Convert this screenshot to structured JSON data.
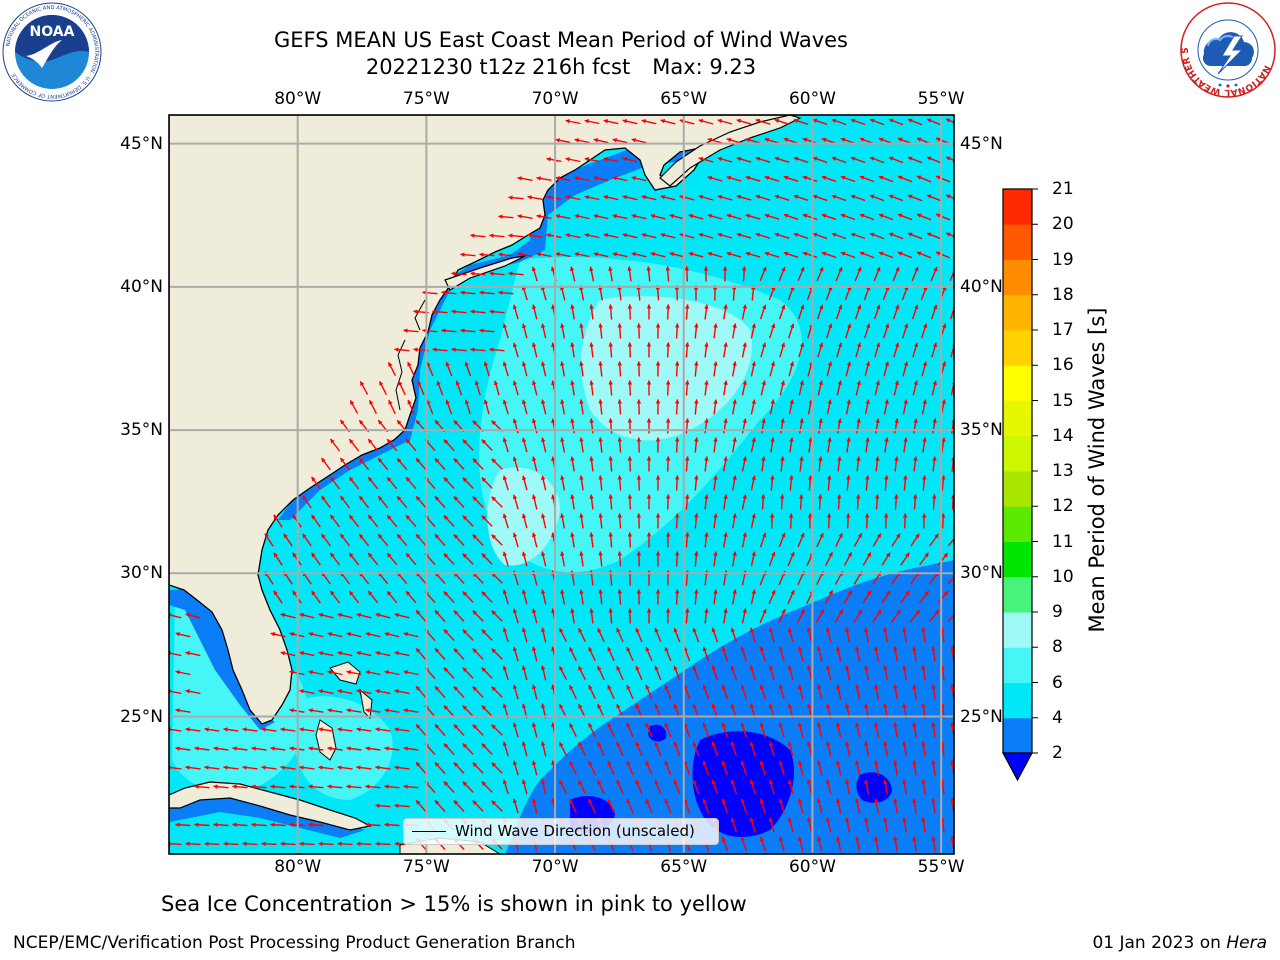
{
  "header": {
    "title_line1": "GEFS MEAN US East Coast Mean Period of Wind Waves",
    "title_run": "20221230 t12z 216h fcst",
    "title_max": "Max: 9.23"
  },
  "logos": {
    "noaa_text": "NOAA",
    "noaa_ring_text": "NATIONAL OCEANIC AND ATMOSPHERIC ADMINISTRATION · U.S. DEPARTMENT OF COMMERCE",
    "nws_ring_text": "NATIONAL WEATHER SERVICE"
  },
  "map": {
    "longitude_ticks": [
      "80°W",
      "75°W",
      "70°W",
      "65°W",
      "60°W",
      "55°W"
    ],
    "latitude_ticks": [
      "45°N",
      "40°N",
      "35°N",
      "30°N",
      "25°N"
    ],
    "longitude_values": [
      -80,
      -75,
      -70,
      -65,
      -60,
      -55
    ],
    "latitude_values": [
      45,
      40,
      35,
      30,
      25
    ],
    "lon_range": [
      -85,
      -54.5
    ],
    "lat_range": [
      20.2,
      46
    ],
    "gridlines": true,
    "land_color": "#efedd9",
    "arrow_color": "#ff0000",
    "legend_label": "Wind Wave Direction (unscaled)"
  },
  "colorbar": {
    "label": "Mean Period of Wind Waves [s]",
    "tick_labels": [
      "2",
      "4",
      "6",
      "8",
      "9",
      "10",
      "11",
      "12",
      "13",
      "14",
      "15",
      "16",
      "17",
      "18",
      "19",
      "20",
      "21"
    ],
    "levels": [
      2,
      4,
      6,
      8,
      9,
      10,
      11,
      12,
      13,
      14,
      15,
      16,
      17,
      18,
      19,
      20,
      21
    ],
    "colors": [
      "#0a7df7",
      "#00e8f7",
      "#46f6f6",
      "#9ff9f7",
      "#48f37c",
      "#00e600",
      "#5cea02",
      "#a8e600",
      "#cdf700",
      "#e6f700",
      "#ffff00",
      "#ffd200",
      "#ffb400",
      "#ff8c00",
      "#ff5a00",
      "#ff2a00"
    ],
    "under_color": "#0000ff",
    "extend": "min"
  },
  "notes": {
    "ice": "Sea Ice Concentration > 15% is shown in pink to yellow"
  },
  "footer": {
    "left": "NCEP/EMC/Verification Post Processing Product Generation Branch",
    "date": "01 Jan 2023 on",
    "host": "Hera"
  }
}
